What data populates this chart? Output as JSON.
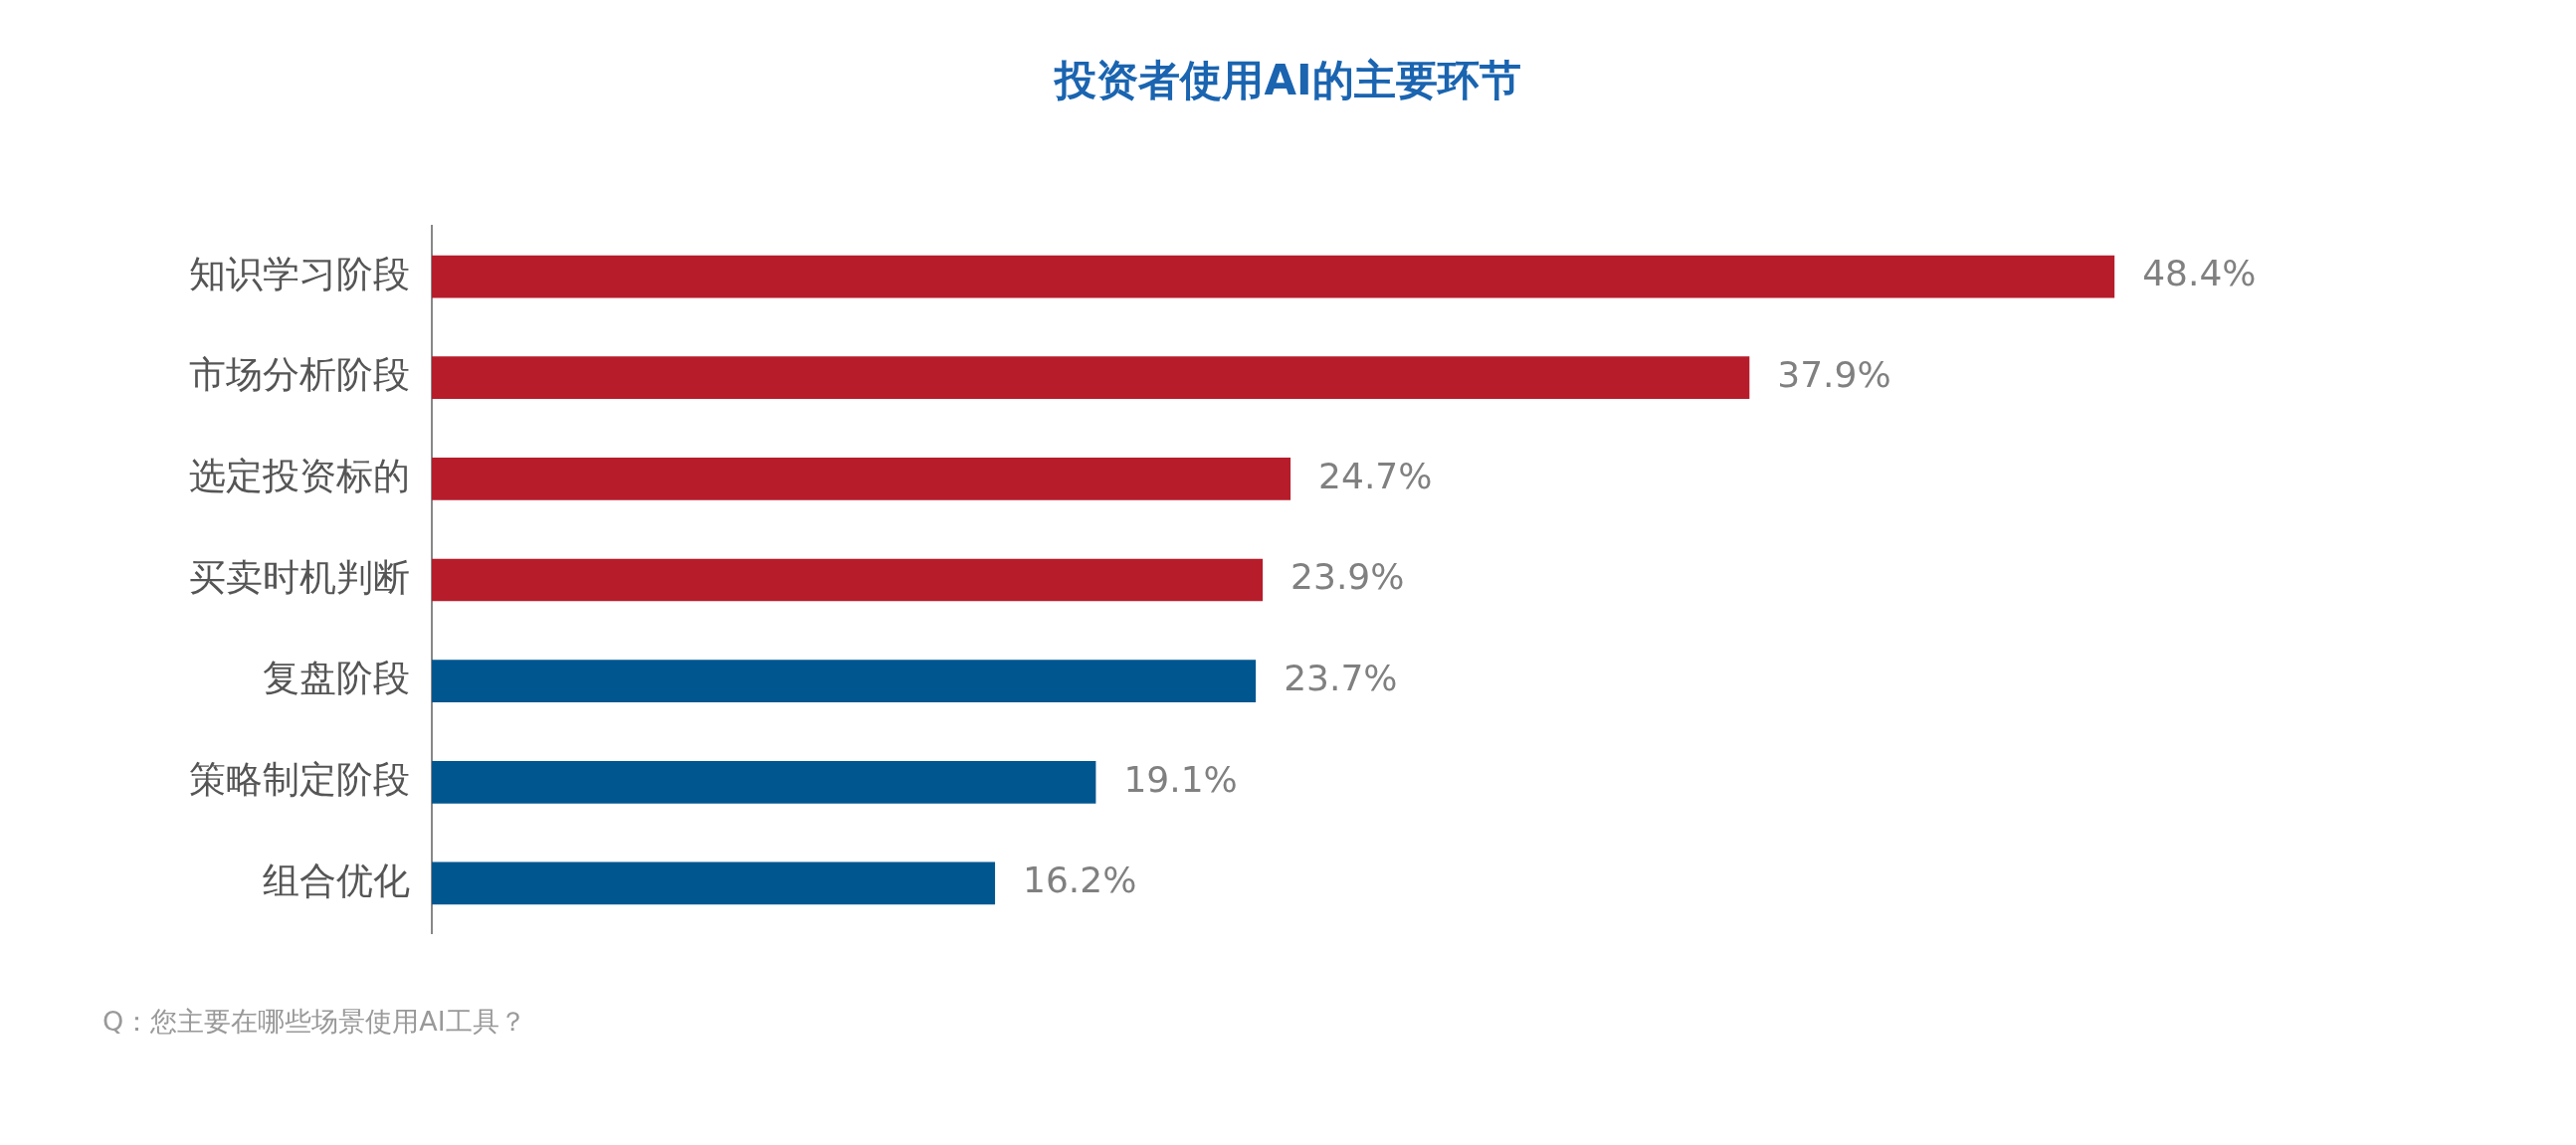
{
  "chart_data": {
    "type": "bar",
    "orientation": "horizontal",
    "title": "投资者使用AI的主要环节",
    "categories": [
      "知识学习阶段",
      "市场分析阶段",
      "选定投资标的",
      "买卖时机判断",
      "复盘阶段",
      "策略制定阶段",
      "组合优化"
    ],
    "values": [
      48.4,
      37.9,
      24.7,
      23.9,
      23.7,
      19.1,
      16.2
    ],
    "value_labels": [
      "48.4%",
      "37.9%",
      "24.7%",
      "23.9%",
      "23.7%",
      "19.1%",
      "16.2%"
    ],
    "colors": [
      "#b71c2b",
      "#b71c2b",
      "#b71c2b",
      "#b71c2b",
      "#00568f",
      "#00568f",
      "#00568f"
    ],
    "grid": false,
    "legend": false,
    "tick_labels": "y",
    "annotations": [
      "Q：您主要在哪些场景使用AI工具？"
    ]
  }
}
